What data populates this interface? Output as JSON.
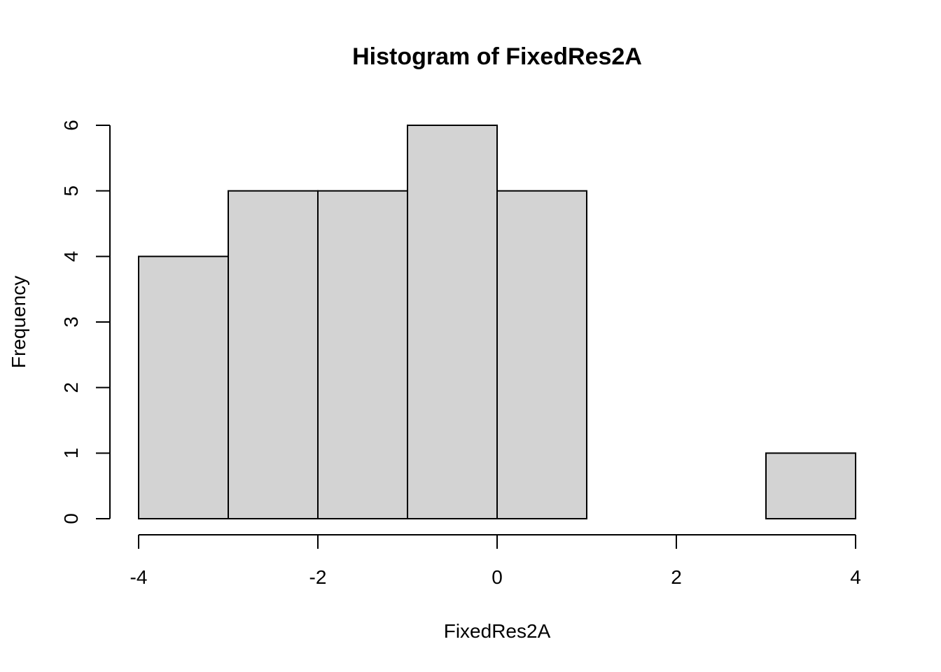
{
  "chart_data": {
    "type": "bar",
    "title": "Histogram of FixedRes2A",
    "xlabel": "FixedRes2A",
    "ylabel": "Frequency",
    "bins": [
      {
        "start": -4,
        "end": -3,
        "count": 4
      },
      {
        "start": -3,
        "end": -2,
        "count": 5
      },
      {
        "start": -2,
        "end": -1,
        "count": 5
      },
      {
        "start": -1,
        "end": 0,
        "count": 6
      },
      {
        "start": 0,
        "end": 1,
        "count": 5
      },
      {
        "start": 1,
        "end": 2,
        "count": 0
      },
      {
        "start": 2,
        "end": 3,
        "count": 0
      },
      {
        "start": 3,
        "end": 4,
        "count": 1
      }
    ],
    "xlim": [
      -4,
      4
    ],
    "ylim": [
      0,
      6
    ],
    "x_ticks": [
      -4,
      -2,
      0,
      2,
      4
    ],
    "x_tick_labels": [
      "-4",
      "-2",
      "0",
      "2",
      "4"
    ],
    "y_ticks": [
      0,
      1,
      2,
      3,
      4,
      5,
      6
    ],
    "y_tick_labels": [
      "0",
      "1",
      "2",
      "3",
      "4",
      "5",
      "6"
    ],
    "grid": false,
    "bar_fill": "#d3d3d3",
    "bar_stroke": "#000000"
  }
}
